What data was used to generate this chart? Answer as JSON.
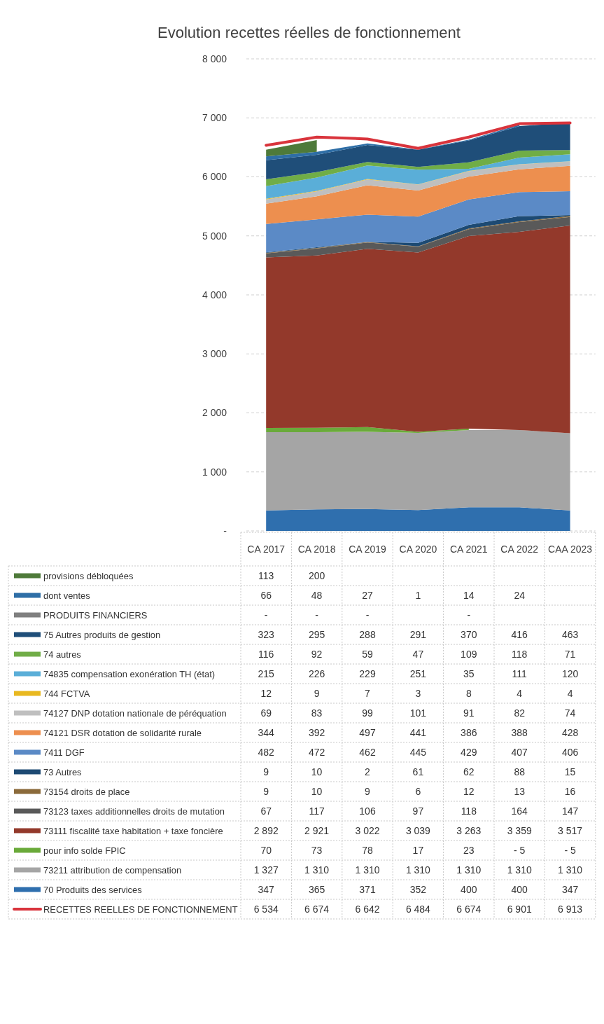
{
  "chart_data": {
    "type": "area",
    "title": "Evolution recettes réelles de fonctionnement",
    "stacked": true,
    "grid": "y",
    "legend": "bottom",
    "categories": [
      "CA 2017",
      "CA 2018",
      "CA 2019",
      "CA 2020",
      "CA 2021",
      "CA 2022",
      "CAA 2023"
    ],
    "ylim": [
      0,
      8000
    ],
    "yticks": [
      {
        "value": 0,
        "label": "-"
      },
      {
        "value": 1000,
        "label": "1 000"
      },
      {
        "value": 2000,
        "label": "2 000"
      },
      {
        "value": 3000,
        "label": "3 000"
      },
      {
        "value": 4000,
        "label": "4 000"
      },
      {
        "value": 5000,
        "label": "5 000"
      },
      {
        "value": 6000,
        "label": "6 000"
      },
      {
        "value": 7000,
        "label": "7 000"
      },
      {
        "value": 8000,
        "label": "8 000"
      }
    ],
    "series": [
      {
        "name": "70 Produits des services",
        "color": "#2f6fae",
        "values": [
          347,
          365,
          371,
          352,
          400,
          400,
          347
        ],
        "value_labels": [
          "347",
          "365",
          "371",
          "352",
          "400",
          "400",
          "347"
        ]
      },
      {
        "name": "73211 attribution de compensation",
        "color": "#a5a5a5",
        "values": [
          1327,
          1310,
          1310,
          1310,
          1310,
          1310,
          1310
        ],
        "value_labels": [
          "1 327",
          "1 310",
          "1 310",
          "1 310",
          "1 310",
          "1 310",
          "1 310"
        ]
      },
      {
        "name": "pour info solde FPIC",
        "color": "#6aaa3a",
        "values": [
          70,
          73,
          78,
          17,
          23,
          null,
          null
        ],
        "value_labels": [
          "70",
          "73",
          "78",
          "17",
          "23",
          "- 5",
          "- 5"
        ]
      },
      {
        "name": "73111 fiscalité taxe habitation + taxe foncière",
        "color": "#93392b",
        "values": [
          2892,
          2921,
          3022,
          3039,
          3263,
          3359,
          3517
        ],
        "value_labels": [
          "2 892",
          "2 921",
          "3 022",
          "3 039",
          "3 263",
          "3 359",
          "3 517"
        ]
      },
      {
        "name": "73123 taxes additionnelles droits de mutation",
        "color": "#595959",
        "values": [
          67,
          117,
          106,
          97,
          118,
          164,
          147
        ],
        "value_labels": [
          "67",
          "117",
          "106",
          "97",
          "118",
          "164",
          "147"
        ]
      },
      {
        "name": "73154 droits de place",
        "color": "#8b6a3a",
        "values": [
          9,
          10,
          9,
          6,
          12,
          13,
          16
        ],
        "value_labels": [
          "9",
          "10",
          "9",
          "6",
          "12",
          "13",
          "16"
        ]
      },
      {
        "name": "73 Autres",
        "color": "#1d4a73",
        "values": [
          9,
          10,
          2,
          61,
          62,
          88,
          15
        ],
        "value_labels": [
          "9",
          "10",
          "2",
          "61",
          "62",
          "88",
          "15"
        ]
      },
      {
        "name": "7411 DGF",
        "color": "#5b8ac6",
        "values": [
          482,
          472,
          462,
          445,
          429,
          407,
          406
        ],
        "value_labels": [
          "482",
          "472",
          "462",
          "445",
          "429",
          "407",
          "406"
        ]
      },
      {
        "name": "74121 DSR dotation de solidarité rurale",
        "color": "#ed8f4f",
        "values": [
          344,
          392,
          497,
          441,
          386,
          388,
          428
        ],
        "value_labels": [
          "344",
          "392",
          "497",
          "441",
          "386",
          "388",
          "428"
        ]
      },
      {
        "name": "74127 DNP dotation nationale de péréquation",
        "color": "#bfbfbf",
        "values": [
          69,
          83,
          99,
          101,
          91,
          82,
          74
        ],
        "value_labels": [
          "69",
          "83",
          "99",
          "101",
          "91",
          "82",
          "74"
        ]
      },
      {
        "name": "744 FCTVA",
        "color": "#e8b820",
        "values": [
          12,
          9,
          7,
          3,
          8,
          4,
          4
        ],
        "value_labels": [
          "12",
          "9",
          "7",
          "3",
          "8",
          "4",
          "4"
        ]
      },
      {
        "name": "74835 compensation exonération TH (état)",
        "color": "#5aaed8",
        "values": [
          215,
          226,
          229,
          251,
          35,
          111,
          120
        ],
        "value_labels": [
          "215",
          "226",
          "229",
          "251",
          "35",
          "111",
          "120"
        ]
      },
      {
        "name": "74 autres",
        "color": "#70ad47",
        "values": [
          116,
          92,
          59,
          47,
          109,
          118,
          71
        ],
        "value_labels": [
          "116",
          "92",
          "59",
          "47",
          "109",
          "118",
          "71"
        ]
      },
      {
        "name": "75 Autres produits de gestion",
        "color": "#1f4e79",
        "values": [
          323,
          295,
          288,
          291,
          370,
          416,
          463
        ],
        "value_labels": [
          "323",
          "295",
          "288",
          "291",
          "370",
          "416",
          "463"
        ]
      },
      {
        "name": "PRODUITS FINANCIERS",
        "color": "#7f7f7f",
        "values": [
          null,
          null,
          null,
          null,
          null,
          null,
          null
        ],
        "value_labels": [
          "-",
          "-",
          "-",
          null,
          "-",
          null,
          null
        ]
      },
      {
        "name": "dont ventes",
        "color": "#2e6ea6",
        "values": [
          66,
          48,
          27,
          1,
          14,
          24,
          null
        ],
        "value_labels": [
          "66",
          "48",
          "27",
          "1",
          "14",
          "24",
          null
        ]
      },
      {
        "name": "provisions débloquées",
        "color": "#4e7a3a",
        "values": [
          113,
          200,
          null,
          null,
          null,
          null,
          null
        ],
        "value_labels": [
          "113",
          "200",
          null,
          null,
          null,
          null,
          null
        ]
      },
      {
        "name": "RECETTES REELLES DE FONCTIONNEMENT",
        "type": "line",
        "color": "#d9343c",
        "values": [
          6534,
          6674,
          6642,
          6484,
          6674,
          6901,
          6913
        ],
        "value_labels": [
          "6 534",
          "6 674",
          "6 642",
          "6 484",
          "6 674",
          "6 901",
          "6 913"
        ]
      }
    ]
  }
}
